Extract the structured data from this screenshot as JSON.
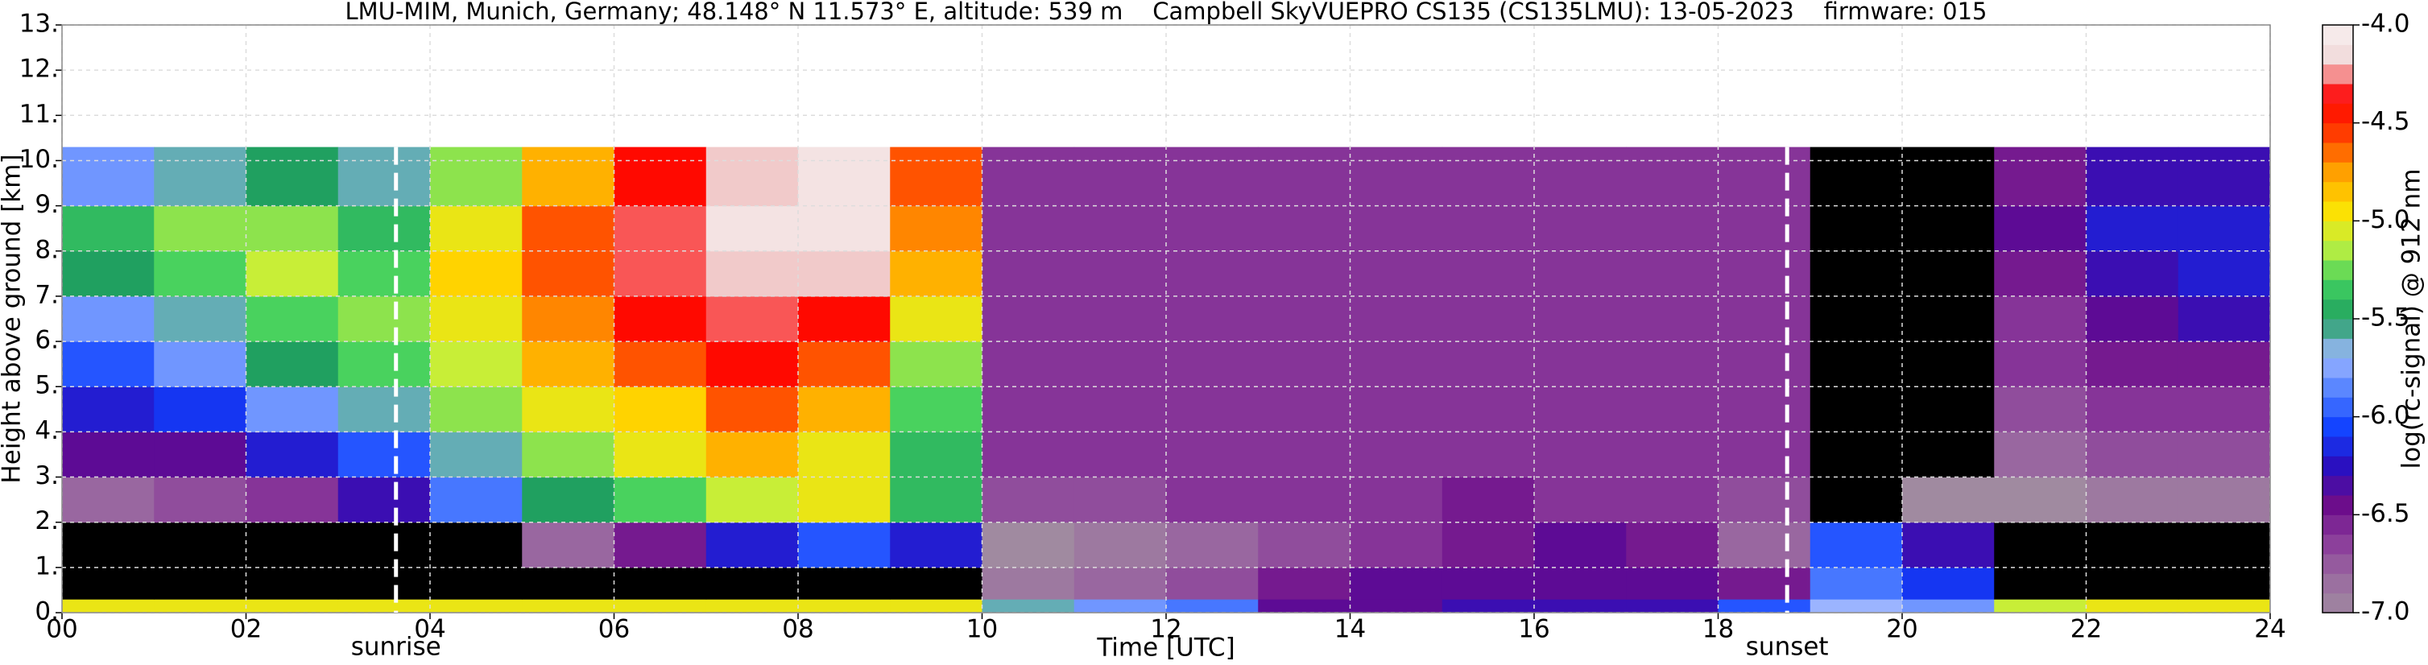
{
  "chart_data": {
    "type": "heatmap",
    "title": "LMU-MIM, Munich, Germany; 48.148° N 11.573° E, altitude: 539 m    Campbell SkyVUEPRO CS135 (CS135LMU): 13-05-2023    firmware: 015",
    "x_label": "Time [UTC]",
    "y_label": "Height above ground [km]",
    "colorbar_label": "log(rc-signal) @ 912 nm",
    "xlim": [
      0,
      24
    ],
    "ylim": [
      0,
      13
    ],
    "xticks": [
      {
        "value": 0,
        "label": "00"
      },
      {
        "value": 2,
        "label": "02"
      },
      {
        "value": 4,
        "label": "04"
      },
      {
        "value": 6,
        "label": "06"
      },
      {
        "value": 8,
        "label": "08"
      },
      10,
      12,
      14,
      16,
      18,
      20,
      22,
      24
    ],
    "yticks": [
      {
        "value": 0,
        "label": "0."
      },
      {
        "value": 1,
        "label": "1."
      },
      {
        "value": 2,
        "label": "2."
      },
      {
        "value": 3,
        "label": "3."
      },
      {
        "value": 4,
        "label": "4."
      },
      {
        "value": 5,
        "label": "5."
      },
      {
        "value": 6,
        "label": "6."
      },
      {
        "value": 7,
        "label": "7."
      },
      {
        "value": 8,
        "label": "8."
      },
      {
        "value": 9,
        "label": "9."
      },
      {
        "value": 10,
        "label": "10."
      },
      {
        "value": 11,
        "label": "11."
      },
      {
        "value": 12,
        "label": "12."
      },
      {
        "value": 13,
        "label": "13."
      }
    ],
    "zlim": [
      -7,
      -4
    ],
    "zticks": [
      {
        "value": -4,
        "label": "-4.0"
      },
      {
        "value": -4.5,
        "label": "-4.5"
      },
      {
        "value": -5,
        "label": "-5.0"
      },
      {
        "value": -5.5,
        "label": "-5.5"
      },
      {
        "value": -6,
        "label": "-6.0"
      },
      {
        "value": -6.5,
        "label": "-6.5"
      },
      {
        "value": -7,
        "label": "-7.0"
      }
    ],
    "grid": true,
    "colormap": [
      "#a08aa0",
      "#9a6aa0",
      "#8a3a9a",
      "#6a0a8a",
      "#2a10c0",
      "#1040ff",
      "#5080ff",
      "#a0b8ff",
      "#20a060",
      "#40d060",
      "#c0f040",
      "#ffe000",
      "#ffa000",
      "#ff4000",
      "#ff0000",
      "#f0d8d8",
      "#f8f0f0"
    ],
    "under_color": "#000000",
    "x_edges": [
      0,
      1,
      2,
      3,
      4,
      5,
      6,
      7,
      8,
      9,
      10,
      11,
      12,
      13,
      14,
      15,
      16,
      17,
      18,
      19,
      20,
      21,
      22,
      23,
      24
    ],
    "y_edges": [
      0,
      0.3,
      1,
      2,
      3,
      4,
      5,
      6,
      7,
      8,
      9,
      10.3
    ],
    "values": [
      [
        -5.0,
        -5.0,
        -5.0,
        -5.0,
        -5.0,
        -5.0,
        -5.0,
        -5.0,
        -5.0,
        -5.0,
        -5.6,
        -5.8,
        -5.9,
        -6.4,
        -6.4,
        -6.3,
        -6.3,
        -6.3,
        -6.0,
        -5.7,
        -5.8,
        -5.1,
        -5.0,
        -5.0
      ],
      [
        -7.5,
        -7.5,
        -7.5,
        -7.5,
        -7.5,
        -7.5,
        -7.5,
        -7.5,
        -7.5,
        -7.5,
        -6.9,
        -6.8,
        -6.7,
        -6.5,
        -6.4,
        -6.4,
        -6.4,
        -6.4,
        -6.5,
        -5.9,
        -6.1,
        -7.2,
        -7.4,
        -7.4
      ],
      [
        -7.4,
        -7.3,
        -7.4,
        -7.3,
        -7.2,
        -6.8,
        -6.5,
        -6.2,
        -6.0,
        -6.2,
        -7.0,
        -6.9,
        -6.8,
        -6.7,
        -6.6,
        -6.5,
        -6.4,
        -6.5,
        -6.8,
        -6.0,
        -6.3,
        -7.3,
        -7.4,
        -7.4
      ],
      [
        -6.8,
        -6.7,
        -6.6,
        -6.3,
        -5.9,
        -5.5,
        -5.3,
        -5.1,
        -5.0,
        -5.4,
        -6.7,
        -6.7,
        -6.6,
        -6.6,
        -6.6,
        -6.5,
        -6.6,
        -6.6,
        -6.7,
        -7.2,
        -7.0,
        -7.0,
        -6.9,
        -6.9
      ],
      [
        -6.4,
        -6.4,
        -6.2,
        -6.0,
        -5.6,
        -5.2,
        -5.0,
        -4.8,
        -5.0,
        -5.4,
        -6.6,
        -6.6,
        -6.6,
        -6.6,
        -6.6,
        -6.6,
        -6.6,
        -6.6,
        -6.6,
        -7.4,
        -7.4,
        -6.8,
        -6.7,
        -6.7
      ],
      [
        -6.2,
        -6.1,
        -5.8,
        -5.6,
        -5.2,
        -5.0,
        -4.9,
        -4.6,
        -4.8,
        -5.3,
        -6.6,
        -6.6,
        -6.6,
        -6.6,
        -6.6,
        -6.6,
        -6.6,
        -6.6,
        -6.6,
        -7.4,
        -7.4,
        -6.7,
        -6.6,
        -6.6
      ],
      [
        -6.0,
        -5.8,
        -5.5,
        -5.3,
        -5.1,
        -4.8,
        -4.6,
        -4.4,
        -4.6,
        -5.2,
        -6.6,
        -6.6,
        -6.6,
        -6.6,
        -6.6,
        -6.6,
        -6.6,
        -6.6,
        -6.6,
        -7.4,
        -7.4,
        -6.6,
        -6.5,
        -6.5
      ],
      [
        -5.8,
        -5.6,
        -5.3,
        -5.2,
        -5.0,
        -4.7,
        -4.4,
        -4.3,
        -4.4,
        -5.0,
        -6.6,
        -6.6,
        -6.6,
        -6.6,
        -6.6,
        -6.6,
        -6.6,
        -6.6,
        -6.6,
        -7.3,
        -7.2,
        -6.6,
        -6.4,
        -6.3
      ],
      [
        -5.5,
        -5.3,
        -5.1,
        -5.3,
        -4.9,
        -4.6,
        -4.3,
        -4.2,
        -4.2,
        -4.8,
        -6.6,
        -6.6,
        -6.6,
        -6.6,
        -6.6,
        -6.6,
        -6.6,
        -6.6,
        -6.6,
        -7.3,
        -7.1,
        -6.5,
        -6.3,
        -6.2
      ],
      [
        -5.4,
        -5.2,
        -5.2,
        -5.4,
        -5.0,
        -4.6,
        -4.3,
        -4.1,
        -4.1,
        -4.7,
        -6.6,
        -6.6,
        -6.6,
        -6.6,
        -6.6,
        -6.6,
        -6.6,
        -6.6,
        -6.6,
        -7.2,
        -7.1,
        -6.4,
        -6.2,
        -6.2
      ],
      [
        -5.8,
        -5.6,
        -5.5,
        -5.6,
        -5.2,
        -4.8,
        -4.4,
        -4.2,
        -4.1,
        -4.6,
        -6.6,
        -6.6,
        -6.6,
        -6.6,
        -6.6,
        -6.6,
        -6.6,
        -6.6,
        -6.6,
        -7.2,
        -7.1,
        -6.5,
        -6.3,
        -6.3
      ]
    ],
    "annotations": [
      {
        "x": 3.63,
        "text": "sunrise"
      },
      {
        "x": 18.75,
        "text": "sunset"
      }
    ]
  }
}
